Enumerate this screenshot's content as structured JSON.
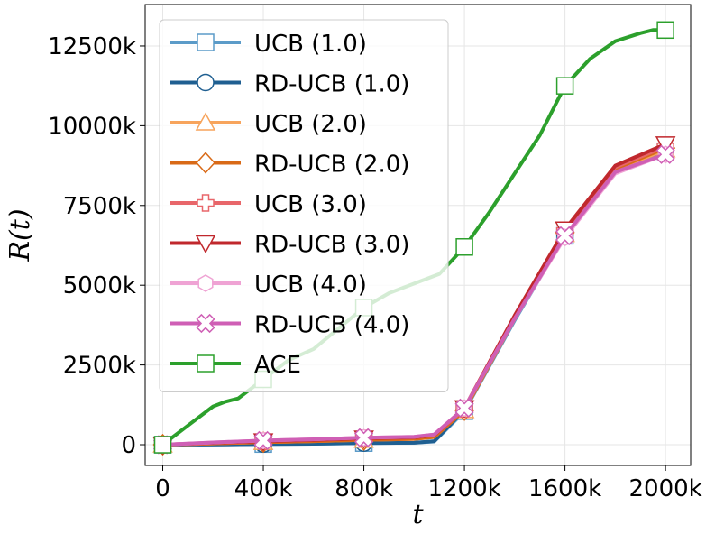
{
  "chart_data": {
    "type": "line",
    "title": "",
    "xlabel": "t",
    "ylabel": "R(t)",
    "xlim": [
      -70000,
      2100000
    ],
    "ylim": [
      -650000,
      13800000
    ],
    "x_ticks": [
      0,
      400000,
      800000,
      1200000,
      1600000,
      2000000
    ],
    "x_tick_labels": [
      "0",
      "400k",
      "800k",
      "1200k",
      "1600k",
      "2000k"
    ],
    "y_ticks": [
      0,
      2500000,
      5000000,
      7500000,
      10000000,
      12500000
    ],
    "y_tick_labels": [
      "0",
      "2500k",
      "5000k",
      "7500k",
      "10000k",
      "12500k"
    ],
    "grid": true,
    "legend_position": "top-left",
    "series": [
      {
        "name": "UCB (1.0)",
        "color": "#5b9bc8",
        "marker": "square",
        "filled": false,
        "x": [
          0,
          200000,
          400000,
          600000,
          800000,
          1000000,
          1080000,
          1200000,
          1400000,
          1600000,
          1800000,
          2000000
        ],
        "y": [
          0,
          10000,
          20000,
          30000,
          50000,
          60000,
          100000,
          1050000,
          3900000,
          6550000,
          8550000,
          9200000
        ],
        "marker_x": [
          0,
          400000,
          800000,
          1200000,
          1600000,
          2000000
        ],
        "marker_y": [
          0,
          20000,
          50000,
          1050000,
          6550000,
          9200000
        ]
      },
      {
        "name": "RD-UCB (1.0)",
        "color": "#1f5f91",
        "marker": "circle",
        "filled": false,
        "x": [
          0,
          200000,
          400000,
          600000,
          800000,
          1000000,
          1080000,
          1200000,
          1400000,
          1600000,
          1800000,
          2000000
        ],
        "y": [
          0,
          10000,
          20000,
          30000,
          50000,
          60000,
          110000,
          1100000,
          3950000,
          6600000,
          8600000,
          9250000
        ],
        "marker_x": [
          0,
          400000,
          800000,
          1200000,
          1600000,
          2000000
        ],
        "marker_y": [
          0,
          20000,
          50000,
          1100000,
          6600000,
          9250000
        ]
      },
      {
        "name": "UCB (2.0)",
        "color": "#f7a45c",
        "marker": "triangle-up",
        "filled": false,
        "x": [
          0,
          200000,
          400000,
          600000,
          800000,
          1000000,
          1080000,
          1200000,
          1400000,
          1600000,
          1800000,
          2000000
        ],
        "y": [
          0,
          40000,
          80000,
          110000,
          150000,
          180000,
          240000,
          1080000,
          3950000,
          6600000,
          8600000,
          9250000
        ],
        "marker_x": [
          0,
          400000,
          800000,
          1200000,
          1600000,
          2000000
        ],
        "marker_y": [
          0,
          80000,
          150000,
          1080000,
          6600000,
          9250000
        ]
      },
      {
        "name": "RD-UCB (2.0)",
        "color": "#d96a17",
        "marker": "diamond",
        "filled": false,
        "x": [
          0,
          200000,
          400000,
          600000,
          800000,
          1000000,
          1080000,
          1200000,
          1400000,
          1600000,
          1800000,
          2000000
        ],
        "y": [
          0,
          40000,
          80000,
          110000,
          150000,
          180000,
          240000,
          1080000,
          3950000,
          6650000,
          8650000,
          9300000
        ],
        "marker_x": [
          0,
          400000,
          800000,
          1200000,
          1600000,
          2000000
        ],
        "marker_y": [
          0,
          80000,
          150000,
          1080000,
          6650000,
          9300000
        ]
      },
      {
        "name": "UCB (3.0)",
        "color": "#e8666a",
        "marker": "plus",
        "filled": false,
        "x": [
          0,
          200000,
          400000,
          600000,
          800000,
          1000000,
          1080000,
          1200000,
          1400000,
          1600000,
          1800000,
          2000000
        ],
        "y": [
          0,
          60000,
          110000,
          150000,
          200000,
          230000,
          300000,
          1120000,
          4000000,
          6700000,
          8700000,
          9350000
        ],
        "marker_x": [
          0,
          400000,
          800000,
          1200000,
          1600000,
          2000000
        ],
        "marker_y": [
          0,
          110000,
          200000,
          1120000,
          6700000,
          9350000
        ]
      },
      {
        "name": "RD-UCB (3.0)",
        "color": "#c0282d",
        "marker": "triangle-down",
        "filled": false,
        "x": [
          0,
          200000,
          400000,
          600000,
          800000,
          1000000,
          1080000,
          1200000,
          1400000,
          1600000,
          1800000,
          2000000
        ],
        "y": [
          0,
          60000,
          110000,
          150000,
          200000,
          230000,
          300000,
          1150000,
          4050000,
          6750000,
          8750000,
          9420000
        ],
        "marker_x": [
          0,
          400000,
          800000,
          1200000,
          1600000,
          2000000
        ],
        "marker_y": [
          0,
          110000,
          200000,
          1150000,
          6750000,
          9420000
        ]
      },
      {
        "name": "UCB (4.0)",
        "color": "#efa3d4",
        "marker": "hexagon",
        "filled": false,
        "x": [
          0,
          200000,
          400000,
          600000,
          800000,
          1000000,
          1080000,
          1200000,
          1400000,
          1600000,
          1800000,
          2000000
        ],
        "y": [
          0,
          70000,
          130000,
          170000,
          220000,
          250000,
          320000,
          1150000,
          3950000,
          6500000,
          8500000,
          9100000
        ],
        "marker_x": [
          0,
          400000,
          800000,
          1200000,
          1600000,
          2000000
        ],
        "marker_y": [
          0,
          130000,
          220000,
          1150000,
          6500000,
          9100000
        ]
      },
      {
        "name": "RD-UCB (4.0)",
        "color": "#cf5fb5",
        "marker": "x",
        "filled": true,
        "x": [
          0,
          200000,
          400000,
          600000,
          800000,
          1000000,
          1080000,
          1200000,
          1400000,
          1600000,
          1800000,
          2000000
        ],
        "y": [
          0,
          70000,
          130000,
          170000,
          220000,
          250000,
          320000,
          1150000,
          3950000,
          6550000,
          8550000,
          9100000
        ],
        "marker_x": [
          0,
          400000,
          800000,
          1200000,
          1600000,
          2000000
        ],
        "marker_y": [
          0,
          130000,
          220000,
          1150000,
          6550000,
          9100000
        ]
      },
      {
        "name": "ACE",
        "color": "#2ca02c",
        "marker": "square",
        "filled": false,
        "x": [
          0,
          100000,
          200000,
          250000,
          300000,
          400000,
          500000,
          600000,
          700000,
          800000,
          900000,
          1000000,
          1100000,
          1200000,
          1300000,
          1400000,
          1500000,
          1600000,
          1700000,
          1800000,
          1900000,
          1950000,
          2000000
        ],
        "y": [
          0,
          600000,
          1200000,
          1350000,
          1450000,
          2050000,
          2650000,
          3000000,
          3650000,
          4300000,
          4750000,
          5050000,
          5350000,
          6200000,
          7300000,
          8500000,
          9700000,
          11250000,
          12100000,
          12650000,
          12900000,
          13000000,
          13000000
        ],
        "marker_x": [
          0,
          400000,
          800000,
          1200000,
          1600000,
          2000000
        ],
        "marker_y": [
          0,
          2050000,
          4300000,
          6200000,
          11250000,
          13000000
        ]
      }
    ]
  }
}
